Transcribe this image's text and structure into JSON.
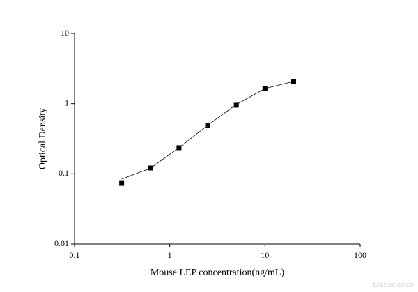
{
  "chart_data": {
    "type": "scatter",
    "x_label": "Mouse LEP concentration(ng/mL)",
    "y_label": "Optical Density",
    "watermark": "Elabscience",
    "x": [
      0.3125,
      0.625,
      1.25,
      2.5,
      5,
      10,
      20
    ],
    "series": [
      {
        "color": "#000000",
        "marker": "square",
        "values": [
          0.073,
          0.121,
          0.235,
          0.489,
          0.95,
          1.64,
          2.07
        ]
      },
      {
        "color": "#000000",
        "marker": "line",
        "values": [
          0.084,
          0.12,
          0.235,
          0.49,
          0.97,
          1.64,
          2.07
        ]
      }
    ],
    "xlim": [
      0.1,
      100
    ],
    "xticks": [
      0.1,
      1,
      10,
      100
    ],
    "ylim": [
      0.01,
      10
    ],
    "yticks": [
      0.01,
      0.1,
      1,
      10
    ],
    "xscale": "log",
    "yscale": "log",
    "grid": false
  }
}
